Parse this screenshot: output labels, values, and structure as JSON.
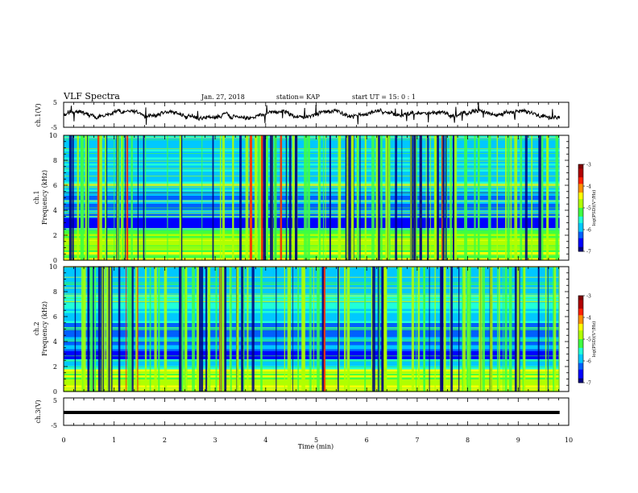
{
  "header": {
    "title": "VLF Spectra",
    "date": "Jan. 27, 2018",
    "station": "station= KAP",
    "start_time": "start UT =  15: 0 : 1"
  },
  "colors": {
    "axes": "#000000",
    "trace": "#000000",
    "background": "#ffffff",
    "colormap": [
      "#00007f",
      "#0000ff",
      "#0060ff",
      "#00c8ff",
      "#20ffd8",
      "#40ff40",
      "#b0ff00",
      "#ffff00",
      "#ff9000",
      "#ff2000",
      "#b00000",
      "#800000"
    ]
  },
  "chart_data": [
    {
      "type": "line",
      "name": "ch1-waveform",
      "ylabel": "ch.1(V)",
      "xlim": [
        0,
        10
      ],
      "ylim": [
        -5,
        5
      ],
      "yticks": [
        "5",
        "-5"
      ],
      "x_end": 9.82,
      "mean": 0.3,
      "spread": 2.0,
      "note": "noisy trace between about -2 and +3 V"
    },
    {
      "type": "heatmap",
      "name": "ch1-spectrogram",
      "ylabel": "ch.1\nFrequency (kHz)",
      "xlim": [
        0,
        10
      ],
      "ylim": [
        0,
        10
      ],
      "yticks": [
        "0",
        "2",
        "4",
        "6",
        "8",
        "10"
      ],
      "x_end": 9.82,
      "colorbar": {
        "label": "log(PSD)(V²/Hz)",
        "range": [
          -7,
          -3
        ],
        "ticks": [
          "-3",
          "-4",
          "-5",
          "-6",
          "-7"
        ]
      }
    },
    {
      "type": "heatmap",
      "name": "ch2-spectrogram",
      "ylabel": "ch.2\nFrequency (kHz)",
      "xlim": [
        0,
        10
      ],
      "ylim": [
        0,
        10
      ],
      "yticks": [
        "0",
        "2",
        "4",
        "6",
        "8",
        "10"
      ],
      "x_end": 9.82,
      "colorbar": {
        "label": "log(PSD)(V²/Hz)",
        "range": [
          -7,
          -3
        ],
        "ticks": [
          "-3",
          "-4",
          "-5",
          "-6",
          "-7"
        ]
      }
    },
    {
      "type": "line",
      "name": "ch3-waveform",
      "ylabel": "ch.3(V)",
      "xlim": [
        0,
        10
      ],
      "ylim": [
        -5,
        5
      ],
      "yticks": [
        "5",
        "-5"
      ],
      "x_end": 9.82,
      "constant_value": 0.0,
      "xlabel": "Time (min)",
      "xticks": [
        "0",
        "1",
        "2",
        "3",
        "4",
        "5",
        "6",
        "7",
        "8",
        "9",
        "10"
      ]
    }
  ]
}
